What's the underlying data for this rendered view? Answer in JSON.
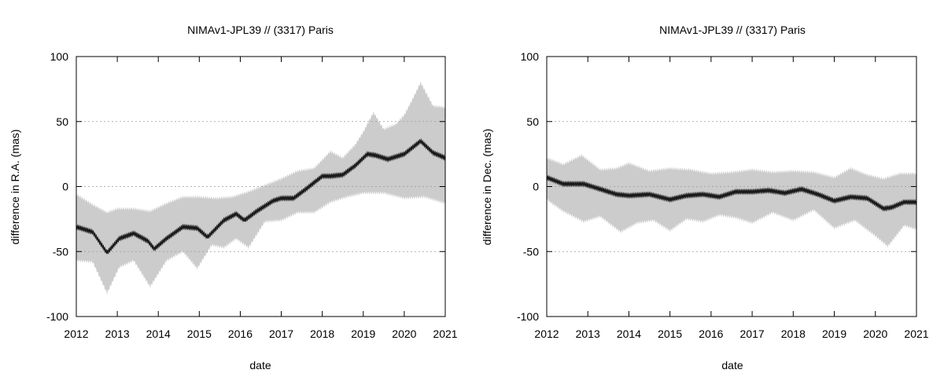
{
  "chart_data": [
    {
      "type": "line",
      "title": "NIMAv1-JPL39 // (3317) Paris",
      "xlabel": "date",
      "ylabel": "difference in R.A. (mas)",
      "xlim": [
        2012,
        2021
      ],
      "ylim": [
        -100,
        100
      ],
      "xticks": [
        "2012",
        "2013",
        "2014",
        "2015",
        "2016",
        "2017",
        "2018",
        "2019",
        "2020",
        "2021"
      ],
      "yticks": [
        "100",
        "50",
        "0",
        "-50",
        "-100"
      ],
      "grid": "horizontal dotted",
      "series": [
        {
          "role": "mean",
          "color": "#1a1a1a",
          "x": [
            2012.0,
            2012.4,
            2012.75,
            2013.05,
            2013.4,
            2013.75,
            2013.9,
            2014.2,
            2014.6,
            2014.95,
            2015.2,
            2015.6,
            2015.9,
            2016.1,
            2016.4,
            2016.8,
            2017.0,
            2017.3,
            2017.6,
            2018.0,
            2018.2,
            2018.5,
            2018.8,
            2019.1,
            2019.3,
            2019.6,
            2020.0,
            2020.4,
            2020.7,
            2021.0
          ],
          "y": [
            -31,
            -35,
            -51,
            -40,
            -36,
            -42,
            -48,
            -40,
            -31,
            -32,
            -39,
            -26,
            -21,
            -26,
            -19,
            -11,
            -9,
            -9,
            -2,
            8,
            8,
            9,
            16,
            25,
            24,
            21,
            25,
            35,
            26,
            22
          ]
        },
        {
          "role": "upper envelope",
          "color": "#cccccc",
          "x": [
            2012.0,
            2012.4,
            2012.75,
            2013.0,
            2013.4,
            2013.8,
            2014.2,
            2014.6,
            2015.0,
            2015.4,
            2015.8,
            2016.2,
            2016.6,
            2017.0,
            2017.4,
            2017.8,
            2018.2,
            2018.5,
            2018.8,
            2019.0,
            2019.25,
            2019.5,
            2019.8,
            2020.0,
            2020.2,
            2020.4,
            2020.7,
            2021.0
          ],
          "y": [
            -6,
            -14,
            -20,
            -17,
            -17,
            -19,
            -13,
            -8,
            -8,
            -9,
            -8,
            -4,
            1,
            6,
            12,
            14,
            27,
            22,
            32,
            42,
            57,
            44,
            48,
            55,
            67,
            80,
            62,
            61
          ]
        },
        {
          "role": "lower envelope",
          "color": "#cccccc",
          "x": [
            2012.0,
            2012.4,
            2012.75,
            2013.05,
            2013.4,
            2013.8,
            2014.2,
            2014.6,
            2014.95,
            2015.3,
            2015.6,
            2015.9,
            2016.2,
            2016.6,
            2017.0,
            2017.4,
            2017.8,
            2018.2,
            2018.6,
            2019.0,
            2019.5,
            2020.0,
            2020.5,
            2021.0
          ],
          "y": [
            -57,
            -58,
            -82,
            -62,
            -57,
            -77,
            -57,
            -50,
            -63,
            -45,
            -47,
            -40,
            -47,
            -27,
            -26,
            -20,
            -20,
            -12,
            -8,
            -5,
            -5,
            -9,
            -8,
            -13
          ]
        }
      ]
    },
    {
      "type": "line",
      "title": "NIMAv1-JPL39 // (3317) Paris",
      "xlabel": "date",
      "ylabel": "difference in Dec. (mas)",
      "xlim": [
        2012,
        2021
      ],
      "ylim": [
        -100,
        100
      ],
      "xticks": [
        "2012",
        "2013",
        "2014",
        "2015",
        "2016",
        "2017",
        "2018",
        "2019",
        "2020",
        "2021"
      ],
      "yticks": [
        "100",
        "50",
        "0",
        "-50",
        "-100"
      ],
      "grid": "horizontal dotted",
      "series": [
        {
          "role": "mean",
          "color": "#1a1a1a",
          "x": [
            2012.0,
            2012.4,
            2012.9,
            2013.3,
            2013.7,
            2014.0,
            2014.5,
            2015.0,
            2015.4,
            2015.8,
            2016.2,
            2016.6,
            2017.0,
            2017.4,
            2017.8,
            2018.2,
            2018.6,
            2019.0,
            2019.4,
            2019.8,
            2020.2,
            2020.4,
            2020.7,
            2021.0
          ],
          "y": [
            7,
            2,
            2,
            -2,
            -6,
            -7,
            -6,
            -10,
            -7,
            -6,
            -8,
            -4,
            -4,
            -3,
            -5,
            -2,
            -6,
            -11,
            -8,
            -9,
            -17,
            -16,
            -12,
            -12
          ]
        },
        {
          "role": "upper envelope",
          "color": "#cccccc",
          "x": [
            2012.0,
            2012.4,
            2012.85,
            2013.3,
            2013.7,
            2014.0,
            2014.5,
            2015.0,
            2015.5,
            2016.0,
            2016.5,
            2017.0,
            2017.5,
            2018.0,
            2018.5,
            2019.0,
            2019.4,
            2019.8,
            2020.2,
            2020.6,
            2021.0
          ],
          "y": [
            22,
            17,
            24,
            13,
            14,
            18,
            12,
            14,
            13,
            10,
            11,
            13,
            11,
            12,
            11,
            7,
            14,
            9,
            6,
            10,
            10
          ]
        },
        {
          "role": "lower envelope",
          "color": "#cccccc",
          "x": [
            2012.0,
            2012.4,
            2012.9,
            2013.3,
            2013.8,
            2014.2,
            2014.6,
            2015.0,
            2015.4,
            2015.8,
            2016.2,
            2016.6,
            2017.0,
            2017.5,
            2018.0,
            2018.5,
            2019.0,
            2019.5,
            2020.0,
            2020.3,
            2020.7,
            2021.0
          ],
          "y": [
            -10,
            -19,
            -27,
            -23,
            -35,
            -28,
            -26,
            -34,
            -25,
            -27,
            -22,
            -24,
            -28,
            -20,
            -26,
            -18,
            -32,
            -26,
            -38,
            -46,
            -30,
            -33
          ]
        }
      ]
    }
  ]
}
